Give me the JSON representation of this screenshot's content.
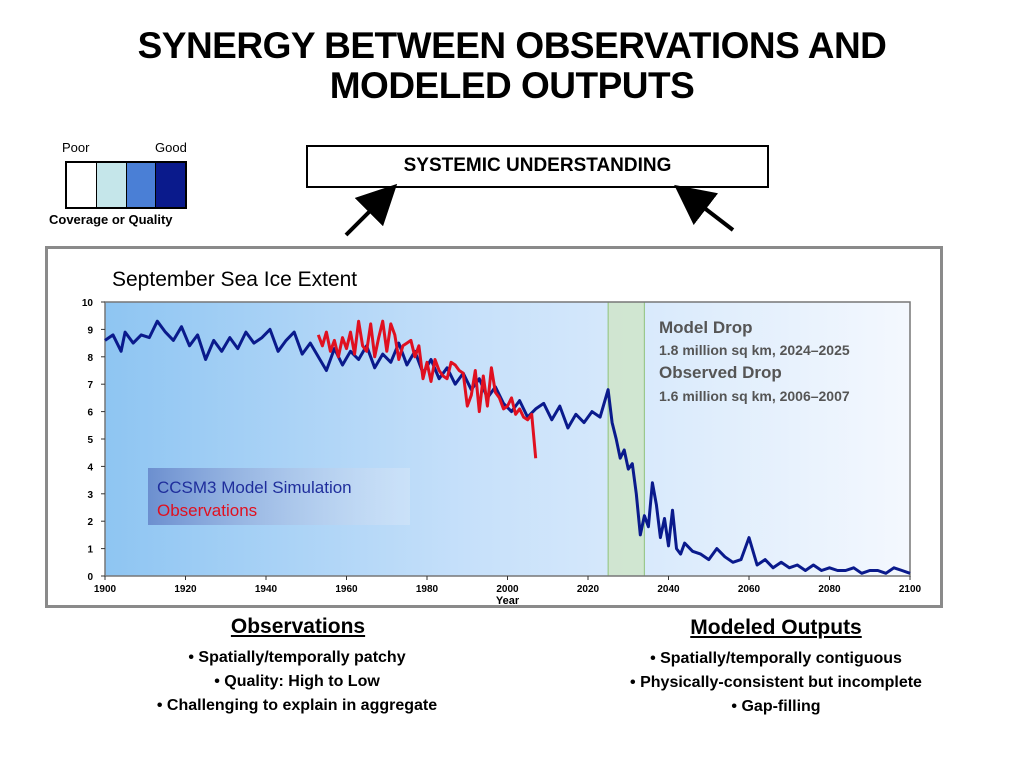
{
  "title_lines": [
    "SYNERGY BETWEEN OBSERVATIONS AND",
    "MODELED OUTPUTS"
  ],
  "legend": {
    "poor": "Poor",
    "good": "Good",
    "caption": "Coverage or Quality",
    "swatches": [
      "#ffffff",
      "#c5e6ea",
      "#4a7fd6",
      "#0a1a8c"
    ]
  },
  "systemic_box": "SYSTEMIC UNDERSTANDING",
  "chart_data": {
    "type": "line",
    "title": "September Sea Ice Extent",
    "xlabel": "Year",
    "ylabel": "",
    "xlim": [
      1900,
      2100
    ],
    "ylim": [
      0,
      10
    ],
    "xticks": [
      1900,
      1920,
      1940,
      1960,
      1980,
      2000,
      2020,
      2040,
      2060,
      2080,
      2100
    ],
    "yticks": [
      0,
      1,
      2,
      3,
      4,
      5,
      6,
      7,
      8,
      9,
      10
    ],
    "highlight_range": [
      2025,
      2034
    ],
    "series": [
      {
        "name": "CCSM3 Model Simulation",
        "color": "#0a1a8c",
        "x": [
          1900,
          1902,
          1904,
          1905,
          1907,
          1909,
          1911,
          1913,
          1915,
          1917,
          1919,
          1921,
          1923,
          1925,
          1927,
          1929,
          1931,
          1933,
          1935,
          1937,
          1939,
          1941,
          1943,
          1945,
          1947,
          1949,
          1951,
          1953,
          1955,
          1957,
          1959,
          1961,
          1963,
          1965,
          1967,
          1969,
          1971,
          1973,
          1975,
          1977,
          1979,
          1981,
          1983,
          1985,
          1987,
          1989,
          1991,
          1993,
          1995,
          1997,
          1999,
          2001,
          2003,
          2005,
          2007,
          2009,
          2011,
          2013,
          2015,
          2017,
          2019,
          2021,
          2023,
          2025,
          2026,
          2027,
          2028,
          2029,
          2030,
          2031,
          2032,
          2033,
          2034,
          2035,
          2036,
          2037,
          2038,
          2039,
          2040,
          2041,
          2042,
          2043,
          2044,
          2046,
          2048,
          2050,
          2052,
          2054,
          2056,
          2058,
          2060,
          2062,
          2064,
          2066,
          2068,
          2070,
          2072,
          2074,
          2076,
          2078,
          2080,
          2082,
          2084,
          2086,
          2088,
          2090,
          2092,
          2094,
          2096,
          2098,
          2100
        ],
        "values": [
          8.6,
          8.8,
          8.2,
          8.9,
          8.5,
          8.8,
          8.7,
          9.3,
          8.9,
          8.6,
          9.1,
          8.4,
          8.8,
          7.9,
          8.6,
          8.2,
          8.7,
          8.3,
          8.9,
          8.5,
          8.7,
          9.0,
          8.2,
          8.6,
          8.9,
          8.1,
          8.5,
          8.0,
          7.5,
          8.3,
          7.7,
          8.2,
          7.9,
          8.4,
          7.6,
          8.1,
          7.8,
          8.5,
          7.7,
          8.2,
          7.4,
          7.9,
          7.2,
          7.6,
          7.0,
          7.4,
          6.8,
          7.2,
          6.5,
          6.9,
          6.3,
          6.0,
          6.4,
          5.8,
          6.1,
          6.3,
          5.7,
          6.2,
          5.4,
          5.9,
          5.6,
          6.0,
          5.8,
          6.8,
          5.6,
          5.0,
          4.3,
          4.6,
          3.9,
          4.1,
          3.0,
          1.5,
          2.2,
          1.8,
          3.4,
          2.6,
          1.4,
          2.1,
          1.1,
          2.4,
          1.0,
          0.8,
          1.2,
          0.9,
          0.8,
          0.6,
          1.0,
          0.7,
          0.5,
          0.6,
          1.4,
          0.4,
          0.6,
          0.3,
          0.5,
          0.3,
          0.4,
          0.2,
          0.4,
          0.2,
          0.3,
          0.2,
          0.2,
          0.3,
          0.1,
          0.2,
          0.2,
          0.1,
          0.3,
          0.2,
          0.1
        ]
      },
      {
        "name": "Observations",
        "color": "#e01020",
        "x": [
          1953,
          1954,
          1955,
          1956,
          1957,
          1958,
          1959,
          1960,
          1961,
          1962,
          1963,
          1964,
          1965,
          1966,
          1967,
          1968,
          1969,
          1970,
          1971,
          1972,
          1973,
          1974,
          1975,
          1976,
          1977,
          1978,
          1979,
          1980,
          1981,
          1982,
          1983,
          1984,
          1985,
          1986,
          1987,
          1988,
          1989,
          1990,
          1991,
          1992,
          1993,
          1994,
          1995,
          1996,
          1997,
          1998,
          1999,
          2000,
          2001,
          2002,
          2003,
          2004,
          2005,
          2006,
          2007
        ],
        "values": [
          8.8,
          8.4,
          8.9,
          8.2,
          8.6,
          8.0,
          8.7,
          8.3,
          8.9,
          8.1,
          9.3,
          8.4,
          8.2,
          9.2,
          8.0,
          8.7,
          9.3,
          8.2,
          9.2,
          8.8,
          7.9,
          8.4,
          8.5,
          8.6,
          8.0,
          8.4,
          7.2,
          7.8,
          7.1,
          7.9,
          7.5,
          7.3,
          7.2,
          7.8,
          7.7,
          7.5,
          7.4,
          6.2,
          6.6,
          7.5,
          6.0,
          7.3,
          6.2,
          7.6,
          6.7,
          6.5,
          6.1,
          6.2,
          6.5,
          5.9,
          6.1,
          5.8,
          5.7,
          5.9,
          4.3
        ]
      }
    ],
    "annotations": {
      "model_drop_label": "Model Drop",
      "model_drop_value": "1.8 million sq km, 2024–2025",
      "observed_drop_label": "Observed Drop",
      "observed_drop_value": "1.6 million sq km, 2006–2007"
    }
  },
  "observations": {
    "heading": "Observations",
    "bullets": [
      "• Spatially/temporally patchy",
      "• Quality: High to Low",
      "• Challenging to explain in aggregate"
    ]
  },
  "modeled": {
    "heading": "Modeled Outputs",
    "bullets": [
      "• Spatially/temporally contiguous",
      "• Physically-consistent but incomplete",
      "• Gap-filling"
    ]
  }
}
